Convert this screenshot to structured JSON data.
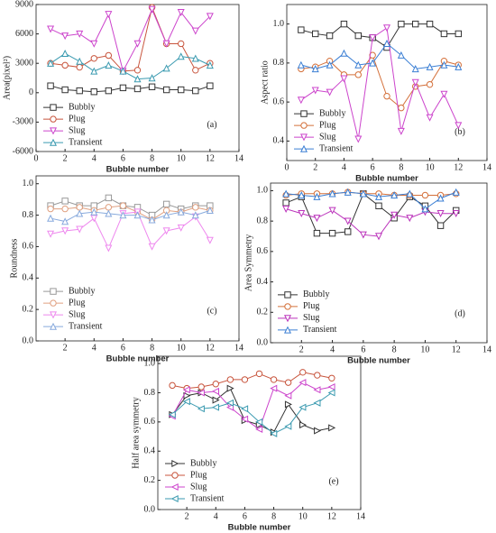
{
  "chart_data": [
    {
      "type": "line",
      "annotation": "(a)",
      "x_label": "Bubble number",
      "y_label": "Area(pixel²)",
      "legend": "lower left",
      "x": [
        1,
        2,
        3,
        4,
        5,
        6,
        7,
        8,
        9,
        10,
        11,
        12
      ],
      "xlim": [
        0,
        14
      ],
      "xticks": [
        0,
        2,
        4,
        6,
        8,
        10,
        12,
        14
      ],
      "ylim": [
        -6000,
        9000
      ],
      "yticks": [
        -6000,
        -3000,
        0,
        3000,
        6000,
        9000
      ],
      "series": [
        {
          "name": "Bubbly",
          "color": "#333333",
          "marker": "square",
          "values": [
            700,
            300,
            200,
            100,
            200,
            500,
            400,
            600,
            300,
            300,
            200,
            700
          ]
        },
        {
          "name": "Plug",
          "color": "#c8553d",
          "marker": "circle",
          "values": [
            3000,
            2800,
            2600,
            3500,
            3800,
            2200,
            2300,
            8700,
            5000,
            5000,
            2300,
            3000
          ]
        },
        {
          "name": "Slug",
          "color": "#cc44cc",
          "marker": "down",
          "values": [
            6500,
            5800,
            6000,
            5000,
            8000,
            2200,
            5000,
            8500,
            5000,
            8200,
            6300,
            7800
          ]
        },
        {
          "name": "Transient",
          "color": "#3a9ab0",
          "marker": "up",
          "values": [
            3000,
            4000,
            3200,
            2200,
            2800,
            2200,
            1400,
            1500,
            2500,
            3700,
            3500,
            2800
          ]
        }
      ]
    },
    {
      "type": "line",
      "annotation": "(b)",
      "x_label": "Bubble number",
      "y_label": "Aspect ratio",
      "legend": "lower left",
      "x": [
        1,
        2,
        3,
        4,
        5,
        6,
        7,
        8,
        9,
        10,
        11,
        12
      ],
      "xlim": [
        0,
        14
      ],
      "xticks": [
        0,
        2,
        4,
        6,
        8,
        10,
        12,
        14
      ],
      "ylim": [
        0.3,
        1.1
      ],
      "yticks": [
        0.4,
        0.6,
        0.8,
        {
          "value": 1,
          "label": "1.0"
        }
      ],
      "series": [
        {
          "name": "Bubbly",
          "color": "#333333",
          "marker": "square",
          "values": [
            0.97,
            0.95,
            0.94,
            1.0,
            0.94,
            0.93,
            0.88,
            1.0,
            1.0,
            1.0,
            0.95,
            0.95
          ]
        },
        {
          "name": "Plug",
          "color": "#d4703a",
          "marker": "circle",
          "values": [
            0.77,
            0.78,
            0.81,
            0.74,
            0.74,
            0.84,
            0.63,
            0.57,
            0.68,
            0.69,
            0.81,
            0.79
          ]
        },
        {
          "name": "Slug",
          "color": "#cc44cc",
          "marker": "down",
          "values": [
            0.61,
            0.66,
            0.65,
            0.72,
            0.41,
            0.93,
            0.98,
            0.45,
            0.7,
            0.52,
            0.64,
            0.48
          ]
        },
        {
          "name": "Transient",
          "color": "#3b7fd4",
          "marker": "up",
          "values": [
            0.79,
            0.77,
            0.79,
            0.85,
            0.79,
            0.8,
            0.9,
            0.84,
            0.77,
            0.78,
            0.79,
            0.78
          ]
        }
      ]
    },
    {
      "type": "line",
      "annotation": "(c)",
      "x_label": "Bubble number",
      "y_label": "Roundness",
      "legend": "lower left",
      "x": [
        1,
        2,
        3,
        4,
        5,
        6,
        7,
        8,
        9,
        10,
        11,
        12
      ],
      "xlim": [
        0,
        14
      ],
      "xticks": [
        2,
        4,
        6,
        8,
        10,
        12,
        14
      ],
      "ylim": [
        0,
        1.05
      ],
      "yticks": [
        {
          "value": 0,
          "label": "0.0"
        },
        0.2,
        0.4,
        0.6,
        0.8,
        {
          "value": 1,
          "label": "1.0"
        }
      ],
      "series": [
        {
          "name": "Bubbly",
          "color": "#999999",
          "marker": "square",
          "values": [
            0.86,
            0.89,
            0.86,
            0.86,
            0.91,
            0.86,
            0.85,
            0.8,
            0.87,
            0.84,
            0.86,
            0.86
          ]
        },
        {
          "name": "Plug",
          "color": "#e0a080",
          "marker": "circle",
          "values": [
            0.84,
            0.84,
            0.85,
            0.83,
            0.85,
            0.86,
            0.82,
            0.77,
            0.83,
            0.82,
            0.85,
            0.83
          ]
        },
        {
          "name": "Slug",
          "color": "#ee88ee",
          "marker": "down",
          "values": [
            0.68,
            0.7,
            0.71,
            0.78,
            0.59,
            0.81,
            0.82,
            0.6,
            0.7,
            0.72,
            0.79,
            0.64
          ]
        },
        {
          "name": "Transient",
          "color": "#88aadd",
          "marker": "up",
          "values": [
            0.78,
            0.76,
            0.81,
            0.82,
            0.81,
            0.8,
            0.8,
            0.77,
            0.8,
            0.82,
            0.8,
            0.83
          ]
        }
      ]
    },
    {
      "type": "line",
      "annotation": "(d)",
      "x_label": "Bubble number",
      "y_label": "Area Symmetry",
      "legend": "lower left",
      "x": [
        1,
        2,
        3,
        4,
        5,
        6,
        7,
        8,
        9,
        10,
        11,
        12
      ],
      "xlim": [
        0,
        14
      ],
      "xticks": [
        2,
        4,
        6,
        8,
        10,
        12,
        14
      ],
      "ylim": [
        0,
        1.05
      ],
      "yticks": [
        {
          "value": 0,
          "label": "0.0"
        },
        0.2,
        0.4,
        0.6,
        0.8,
        {
          "value": 1,
          "label": "1.0"
        }
      ],
      "series": [
        {
          "name": "Bubbly",
          "color": "#333333",
          "marker": "square",
          "values": [
            0.92,
            0.96,
            0.72,
            0.72,
            0.73,
            0.98,
            0.9,
            0.82,
            0.96,
            0.9,
            0.77,
            0.87
          ]
        },
        {
          "name": "Plug",
          "color": "#d4703a",
          "marker": "circle",
          "values": [
            0.97,
            0.98,
            0.98,
            0.98,
            0.99,
            0.98,
            0.98,
            0.97,
            0.97,
            0.97,
            0.97,
            0.98
          ]
        },
        {
          "name": "Slug",
          "color": "#bb33bb",
          "marker": "down",
          "values": [
            0.88,
            0.85,
            0.82,
            0.87,
            0.8,
            0.71,
            0.7,
            0.84,
            0.82,
            0.86,
            0.85,
            0.85
          ]
        },
        {
          "name": "Transient",
          "color": "#3b7fd4",
          "marker": "up",
          "values": [
            0.98,
            0.97,
            0.96,
            0.98,
            0.99,
            0.98,
            0.96,
            0.97,
            0.98,
            0.88,
            0.95,
            0.99
          ]
        }
      ]
    },
    {
      "type": "line",
      "annotation": "(e)",
      "x_label": "Bubble number",
      "y_label": "Half area symmetry",
      "legend": "lower left",
      "x": [
        1,
        2,
        3,
        4,
        5,
        6,
        7,
        8,
        9,
        10,
        11,
        12
      ],
      "xlim": [
        0,
        14
      ],
      "xticks": [
        2,
        4,
        6,
        8,
        10,
        12,
        14
      ],
      "ylim": [
        0,
        1.05
      ],
      "yticks": [
        {
          "value": 0,
          "label": "0.0"
        },
        0.2,
        0.4,
        0.6,
        0.8,
        {
          "value": 1,
          "label": "1.0"
        }
      ],
      "series": [
        {
          "name": "Bubbly",
          "color": "#333333",
          "marker": "right",
          "values": [
            0.65,
            0.78,
            0.8,
            0.75,
            0.83,
            0.61,
            0.58,
            0.53,
            0.72,
            0.58,
            0.54,
            0.56
          ]
        },
        {
          "name": "Plug",
          "color": "#c8553d",
          "marker": "circle",
          "values": [
            0.85,
            0.83,
            0.84,
            0.86,
            0.89,
            0.89,
            0.93,
            0.89,
            0.87,
            0.94,
            0.92,
            0.9
          ]
        },
        {
          "name": "Slug",
          "color": "#cc44cc",
          "marker": "left",
          "values": [
            0.64,
            0.82,
            0.8,
            0.81,
            0.7,
            0.62,
            0.55,
            0.83,
            0.78,
            0.87,
            0.82,
            0.84
          ]
        },
        {
          "name": "Transient",
          "color": "#3a9ab0",
          "marker": "left",
          "values": [
            0.65,
            0.74,
            0.69,
            0.7,
            0.73,
            0.69,
            0.6,
            0.52,
            0.57,
            0.7,
            0.73,
            0.8
          ]
        }
      ]
    }
  ]
}
